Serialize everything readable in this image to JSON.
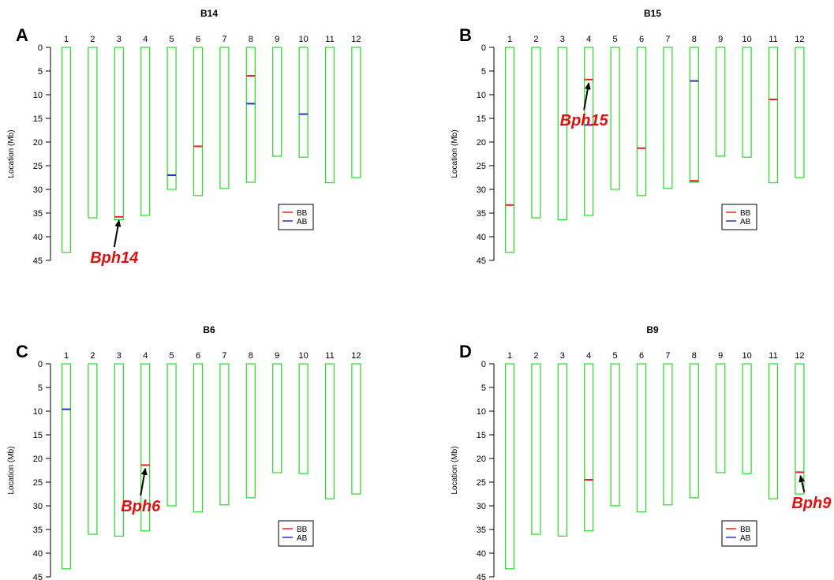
{
  "colors": {
    "chromosome": "#22dd22",
    "BB": "#ee2222",
    "AB": "#2233cc",
    "annotation": "#dd1111",
    "arrow": "#000000",
    "axis": "#000000"
  },
  "chart_data": [
    {
      "panel_letter": "A",
      "type": "chromosome_map",
      "title": "B14",
      "ylabel": "Location (Mb)",
      "ylim": [
        0,
        45
      ],
      "yticks": [
        0,
        5,
        10,
        15,
        20,
        25,
        30,
        35,
        40,
        45
      ],
      "categories": [
        "1",
        "2",
        "3",
        "4",
        "5",
        "6",
        "7",
        "8",
        "9",
        "10",
        "11",
        "12"
      ],
      "lengths": [
        43.3,
        36.0,
        36.4,
        35.5,
        30.0,
        31.3,
        29.8,
        28.5,
        23.0,
        23.2,
        28.6,
        27.5
      ],
      "legend": {
        "entries": [
          "BB",
          "AB"
        ],
        "position": "bottom-right"
      },
      "markers": [
        {
          "chr": "3",
          "pos": 35.8,
          "type": "BB"
        },
        {
          "chr": "5",
          "pos": 27.0,
          "type": "AB"
        },
        {
          "chr": "6",
          "pos": 20.9,
          "type": "BB"
        },
        {
          "chr": "8",
          "pos": 6.0,
          "type": "BB"
        },
        {
          "chr": "8",
          "pos": 11.9,
          "type": "AB"
        },
        {
          "chr": "10",
          "pos": 14.1,
          "type": "AB"
        }
      ],
      "annotation": {
        "label": "Bph14",
        "chr": "3",
        "pos": 36.2
      }
    },
    {
      "panel_letter": "B",
      "type": "chromosome_map",
      "title": "B15",
      "ylabel": "Location (Mb)",
      "ylim": [
        0,
        45
      ],
      "yticks": [
        0,
        5,
        10,
        15,
        20,
        25,
        30,
        35,
        40,
        45
      ],
      "categories": [
        "1",
        "2",
        "3",
        "4",
        "5",
        "6",
        "7",
        "8",
        "9",
        "10",
        "11",
        "12"
      ],
      "lengths": [
        43.3,
        36.0,
        36.4,
        35.5,
        30.0,
        31.3,
        29.8,
        28.5,
        23.0,
        23.2,
        28.6,
        27.5
      ],
      "legend": {
        "entries": [
          "BB",
          "AB"
        ],
        "position": "bottom-right"
      },
      "markers": [
        {
          "chr": "1",
          "pos": 33.3,
          "type": "BB"
        },
        {
          "chr": "4",
          "pos": 6.8,
          "type": "BB"
        },
        {
          "chr": "4",
          "pos": 16.4,
          "type": "AB"
        },
        {
          "chr": "6",
          "pos": 21.3,
          "type": "BB"
        },
        {
          "chr": "8",
          "pos": 7.1,
          "type": "AB"
        },
        {
          "chr": "8",
          "pos": 28.2,
          "type": "BB"
        },
        {
          "chr": "11",
          "pos": 11.0,
          "type": "BB"
        }
      ],
      "annotation": {
        "label": "Bph15",
        "chr": "4",
        "pos": 7.2
      }
    },
    {
      "panel_letter": "C",
      "type": "chromosome_map",
      "title": "B6",
      "ylabel": "Location (Mb)",
      "ylim": [
        0,
        45
      ],
      "yticks": [
        0,
        5,
        10,
        15,
        20,
        25,
        30,
        35,
        40,
        45
      ],
      "categories": [
        "1",
        "2",
        "3",
        "4",
        "5",
        "6",
        "7",
        "8",
        "9",
        "10",
        "11",
        "12"
      ],
      "lengths": [
        43.3,
        36.0,
        36.4,
        35.3,
        30.0,
        31.3,
        29.8,
        28.3,
        23.0,
        23.2,
        28.5,
        27.5
      ],
      "legend": {
        "entries": [
          "BB",
          "AB"
        ],
        "position": "bottom-right"
      },
      "markers": [
        {
          "chr": "1",
          "pos": 9.6,
          "type": "AB"
        },
        {
          "chr": "4",
          "pos": 21.4,
          "type": "BB"
        }
      ],
      "annotation": {
        "label": "Bph6",
        "chr": "4",
        "pos": 21.8
      }
    },
    {
      "panel_letter": "D",
      "type": "chromosome_map",
      "title": "B9",
      "ylabel": "Location (Mb)",
      "ylim": [
        0,
        45
      ],
      "yticks": [
        0,
        5,
        10,
        15,
        20,
        25,
        30,
        35,
        40,
        45
      ],
      "categories": [
        "1",
        "2",
        "3",
        "4",
        "5",
        "6",
        "7",
        "8",
        "9",
        "10",
        "11",
        "12"
      ],
      "lengths": [
        43.3,
        36.0,
        36.4,
        35.3,
        30.0,
        31.3,
        29.8,
        28.3,
        23.0,
        23.2,
        28.5,
        27.5
      ],
      "legend": {
        "entries": [
          "BB",
          "AB"
        ],
        "position": "bottom-right"
      },
      "markers": [
        {
          "chr": "4",
          "pos": 24.5,
          "type": "BB"
        },
        {
          "chr": "12",
          "pos": 22.9,
          "type": "BB"
        }
      ],
      "annotation": {
        "label": "Bph9",
        "chr": "12",
        "pos": 23.3
      }
    }
  ]
}
